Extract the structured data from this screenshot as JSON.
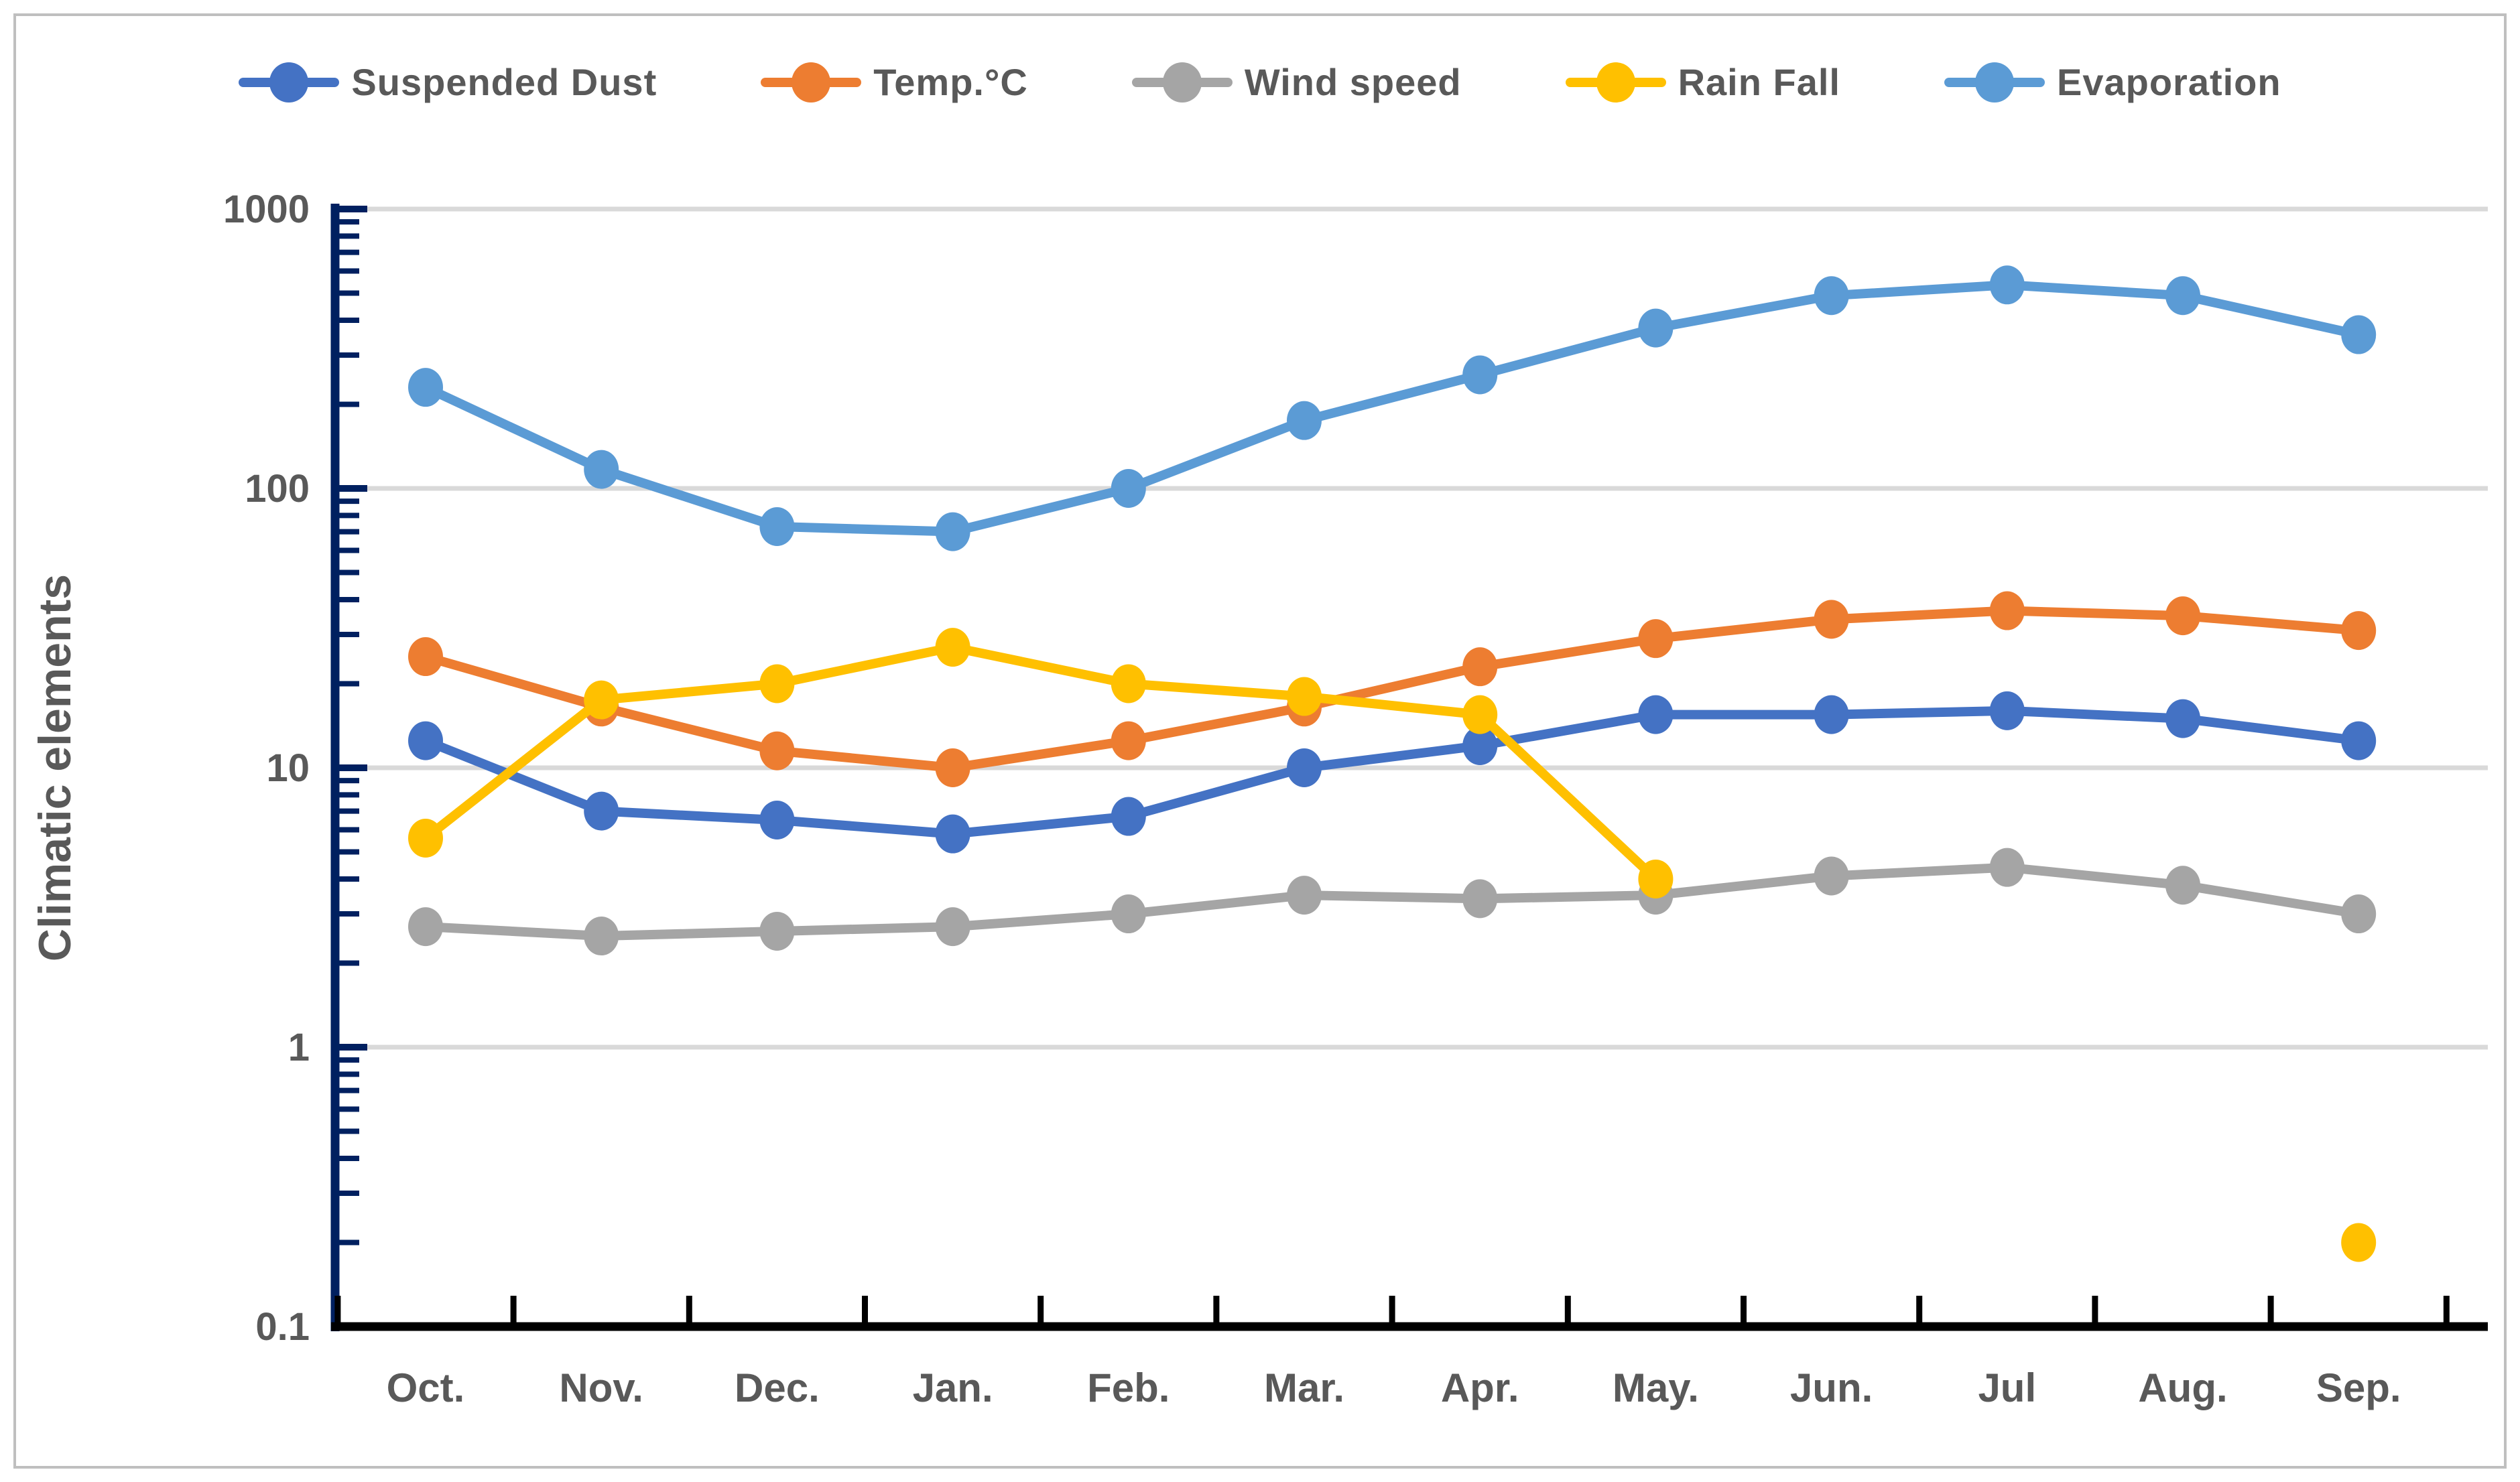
{
  "chart_data": {
    "type": "line",
    "title": "",
    "ylabel": "Climatic elements",
    "xlabel": "",
    "y_scale": "log",
    "ylim": [
      0.1,
      1000
    ],
    "grid": "horizontal-decades",
    "legend_position": "top",
    "y_ticks": [
      {
        "label": "1000",
        "value": 1000
      },
      {
        "label": "100",
        "value": 100
      },
      {
        "label": "10",
        "value": 10
      },
      {
        "label": "1",
        "value": 1
      },
      {
        "label": "0.1",
        "value": 0.1
      }
    ],
    "categories": [
      "Oct.",
      "Nov.",
      "Dec.",
      "Jan.",
      "Feb.",
      "Mar.",
      "Apr.",
      "May.",
      "Jun.",
      "Jul",
      "Aug.",
      "Sep."
    ],
    "series": [
      {
        "name": "Suspended Dust",
        "color": "#4472C4",
        "values": [
          12.5,
          7,
          6.5,
          5.8,
          6.7,
          10,
          12,
          15.5,
          15.5,
          16,
          15,
          12.5
        ]
      },
      {
        "name": "Temp.°C",
        "color": "#ED7D31",
        "values": [
          25,
          16.5,
          11.5,
          10,
          12.5,
          16.5,
          23,
          29,
          34,
          36.5,
          35,
          31
        ]
      },
      {
        "name": "Wind speed",
        "color": "#A5A5A5",
        "values": [
          2.7,
          2.5,
          2.6,
          2.7,
          3,
          3.5,
          3.4,
          3.5,
          4.1,
          4.4,
          3.8,
          3
        ]
      },
      {
        "name": "Rain Fall",
        "color": "#FFC000",
        "values": [
          5.6,
          17.5,
          20,
          27,
          20,
          18,
          15.5,
          4,
          null,
          null,
          null,
          0.2
        ]
      },
      {
        "name": "Evaporation",
        "color": "#5B9BD5",
        "values": [
          230,
          117,
          73,
          70,
          100,
          175,
          255,
          375,
          490,
          535,
          490,
          355
        ]
      }
    ],
    "colors": {
      "axis_line": "#002060",
      "x_axis_line": "#000000",
      "gridline": "#D9D9D9",
      "text": "#595959",
      "frame_border": "#BFBFBF",
      "background": "#FFFFFF"
    }
  }
}
